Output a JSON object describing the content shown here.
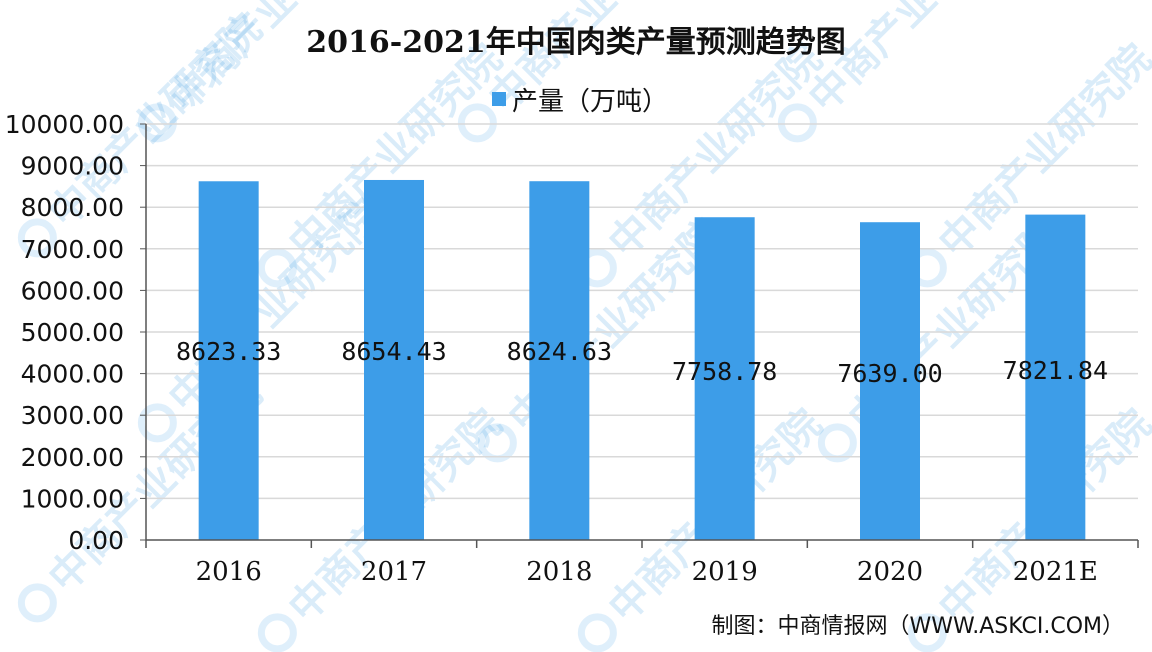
{
  "chart_data": {
    "type": "bar",
    "title": "2016-2021年中国肉类产量预测趋势图",
    "legend": {
      "position": "top",
      "entries": [
        "产量（万吨）"
      ]
    },
    "categories": [
      "2016",
      "2017",
      "2018",
      "2019",
      "2020",
      "2021E"
    ],
    "series": [
      {
        "name": "产量（万吨）",
        "values": [
          8623.33,
          8654.43,
          8624.63,
          7758.78,
          7639.0,
          7821.84
        ],
        "data_labels": [
          "8623.33",
          "8654.43",
          "8624.63",
          "7758.78",
          "7639.00",
          "7821.84"
        ],
        "color": "#3d9de8"
      }
    ],
    "y_ticks": [
      "0.00",
      "1000.00",
      "2000.00",
      "3000.00",
      "4000.00",
      "5000.00",
      "6000.00",
      "7000.00",
      "8000.00",
      "9000.00",
      "10000.00"
    ],
    "ylim": [
      0,
      10000
    ],
    "xlabel": "",
    "ylabel": "",
    "grid": true,
    "gridline_color": "#d9d9d9"
  },
  "source_text": "制图：中商情报网（WWW.ASKCI.COM）",
  "watermark": {
    "text": "中商产业研究院"
  }
}
